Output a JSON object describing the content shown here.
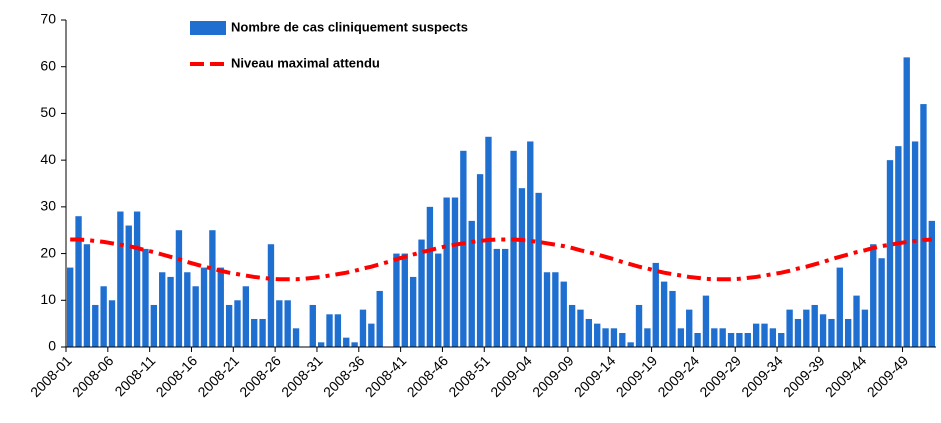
{
  "chart_data": {
    "type": "bar",
    "categories": [
      "2008-01",
      null,
      null,
      null,
      null,
      "2008-06",
      null,
      null,
      null,
      null,
      "2008-11",
      null,
      null,
      null,
      null,
      "2008-16",
      null,
      null,
      null,
      null,
      "2008-21",
      null,
      null,
      null,
      null,
      "2008-26",
      null,
      null,
      null,
      null,
      "2008-31",
      null,
      null,
      null,
      null,
      "2008-36",
      null,
      null,
      null,
      null,
      "2008-41",
      null,
      null,
      null,
      null,
      "2008-46",
      null,
      null,
      null,
      null,
      "2008-51",
      null,
      null,
      null,
      null,
      "2009-04",
      null,
      null,
      null,
      null,
      "2009-09",
      null,
      null,
      null,
      null,
      "2009-14",
      null,
      null,
      null,
      null,
      "2009-19",
      null,
      null,
      null,
      null,
      "2009-24",
      null,
      null,
      null,
      null,
      "2009-29",
      null,
      null,
      null,
      null,
      "2009-34",
      null,
      null,
      null,
      null,
      "2009-39",
      null,
      null,
      null,
      null,
      "2009-44",
      null,
      null,
      null,
      null,
      "2009-49",
      null,
      null,
      null
    ],
    "series": [
      {
        "name": "Nombre de cas cliniquement suspects",
        "type": "bar",
        "color": "#1f6fd1",
        "values": [
          17,
          28,
          22,
          9,
          13,
          10,
          29,
          26,
          29,
          21,
          9,
          16,
          15,
          25,
          16,
          13,
          17,
          25,
          17,
          9,
          10,
          13,
          6,
          6,
          22,
          10,
          10,
          4,
          0,
          9,
          1,
          7,
          7,
          2,
          1,
          8,
          5,
          12,
          0,
          20,
          20,
          15,
          23,
          30,
          20,
          32,
          32,
          42,
          27,
          37,
          45,
          21,
          21,
          42,
          34,
          44,
          33,
          16,
          16,
          14,
          9,
          8,
          6,
          5,
          4,
          4,
          3,
          1,
          9,
          4,
          18,
          14,
          12,
          4,
          8,
          3,
          11,
          4,
          4,
          3,
          3,
          3,
          5,
          5,
          4,
          3,
          8,
          6,
          8,
          9,
          7,
          6,
          17,
          6,
          11,
          8,
          22,
          19,
          40,
          43,
          62,
          44,
          52,
          27
        ]
      },
      {
        "name": "Niveau maximal attendu",
        "type": "line",
        "color": "#ff0000",
        "values": [
          23.0,
          23.0,
          22.9,
          22.7,
          22.5,
          22.2,
          21.9,
          21.6,
          21.2,
          20.7,
          20.3,
          19.8,
          19.3,
          18.8,
          18.2,
          17.7,
          17.2,
          16.8,
          16.3,
          15.9,
          15.6,
          15.3,
          15.0,
          14.8,
          14.6,
          14.5,
          14.5,
          14.5,
          14.6,
          14.8,
          15.0,
          15.3,
          15.6,
          15.9,
          16.3,
          16.8,
          17.2,
          17.7,
          18.2,
          18.8,
          19.3,
          19.8,
          20.3,
          20.7,
          21.2,
          21.6,
          21.9,
          22.2,
          22.5,
          22.7,
          22.9,
          23.0,
          23.0,
          23.0,
          22.9,
          22.7,
          22.5,
          22.2,
          21.9,
          21.6,
          21.2,
          20.7,
          20.3,
          19.8,
          19.3,
          18.8,
          18.2,
          17.7,
          17.2,
          16.8,
          16.3,
          15.9,
          15.6,
          15.3,
          15.0,
          14.8,
          14.6,
          14.5,
          14.5,
          14.5,
          14.6,
          14.8,
          15.0,
          15.3,
          15.6,
          15.9,
          16.3,
          16.8,
          17.2,
          17.7,
          18.2,
          18.8,
          19.3,
          19.8,
          20.3,
          20.7,
          21.2,
          21.6,
          21.9,
          22.2,
          22.5,
          22.7,
          22.9,
          23.0
        ]
      }
    ],
    "ylim": [
      0,
      70
    ],
    "yticks": [
      0,
      10,
      20,
      30,
      40,
      50,
      60,
      70
    ],
    "grid": false
  }
}
